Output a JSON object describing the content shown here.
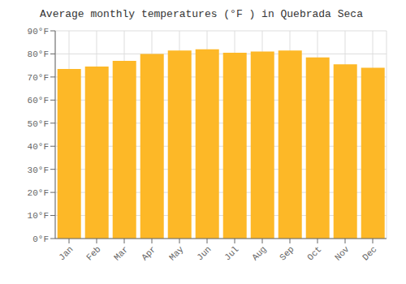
{
  "chart_data": {
    "type": "bar",
    "title": "Average monthly temperatures (°F ) in Quebrada Seca",
    "categories": [
      "Jan",
      "Feb",
      "Mar",
      "Apr",
      "May",
      "Jun",
      "Jul",
      "Aug",
      "Sep",
      "Oct",
      "Nov",
      "Dec"
    ],
    "values": [
      73.5,
      74.5,
      77,
      80,
      81.5,
      82,
      80.5,
      81,
      81.5,
      78.5,
      75.5,
      74
    ],
    "color": "#FDB827",
    "ylim": [
      0,
      90
    ],
    "yticks": [
      {
        "value": 0,
        "label": "0°F"
      },
      {
        "value": 10,
        "label": "10°F"
      },
      {
        "value": 20,
        "label": "20°F"
      },
      {
        "value": 30,
        "label": "30°F"
      },
      {
        "value": 40,
        "label": "40°F"
      },
      {
        "value": 50,
        "label": "50°F"
      },
      {
        "value": 60,
        "label": "60°F"
      },
      {
        "value": 70,
        "label": "70°F"
      },
      {
        "value": 80,
        "label": "80°F"
      },
      {
        "value": 90,
        "label": "90°F"
      }
    ],
    "grid": true
  }
}
